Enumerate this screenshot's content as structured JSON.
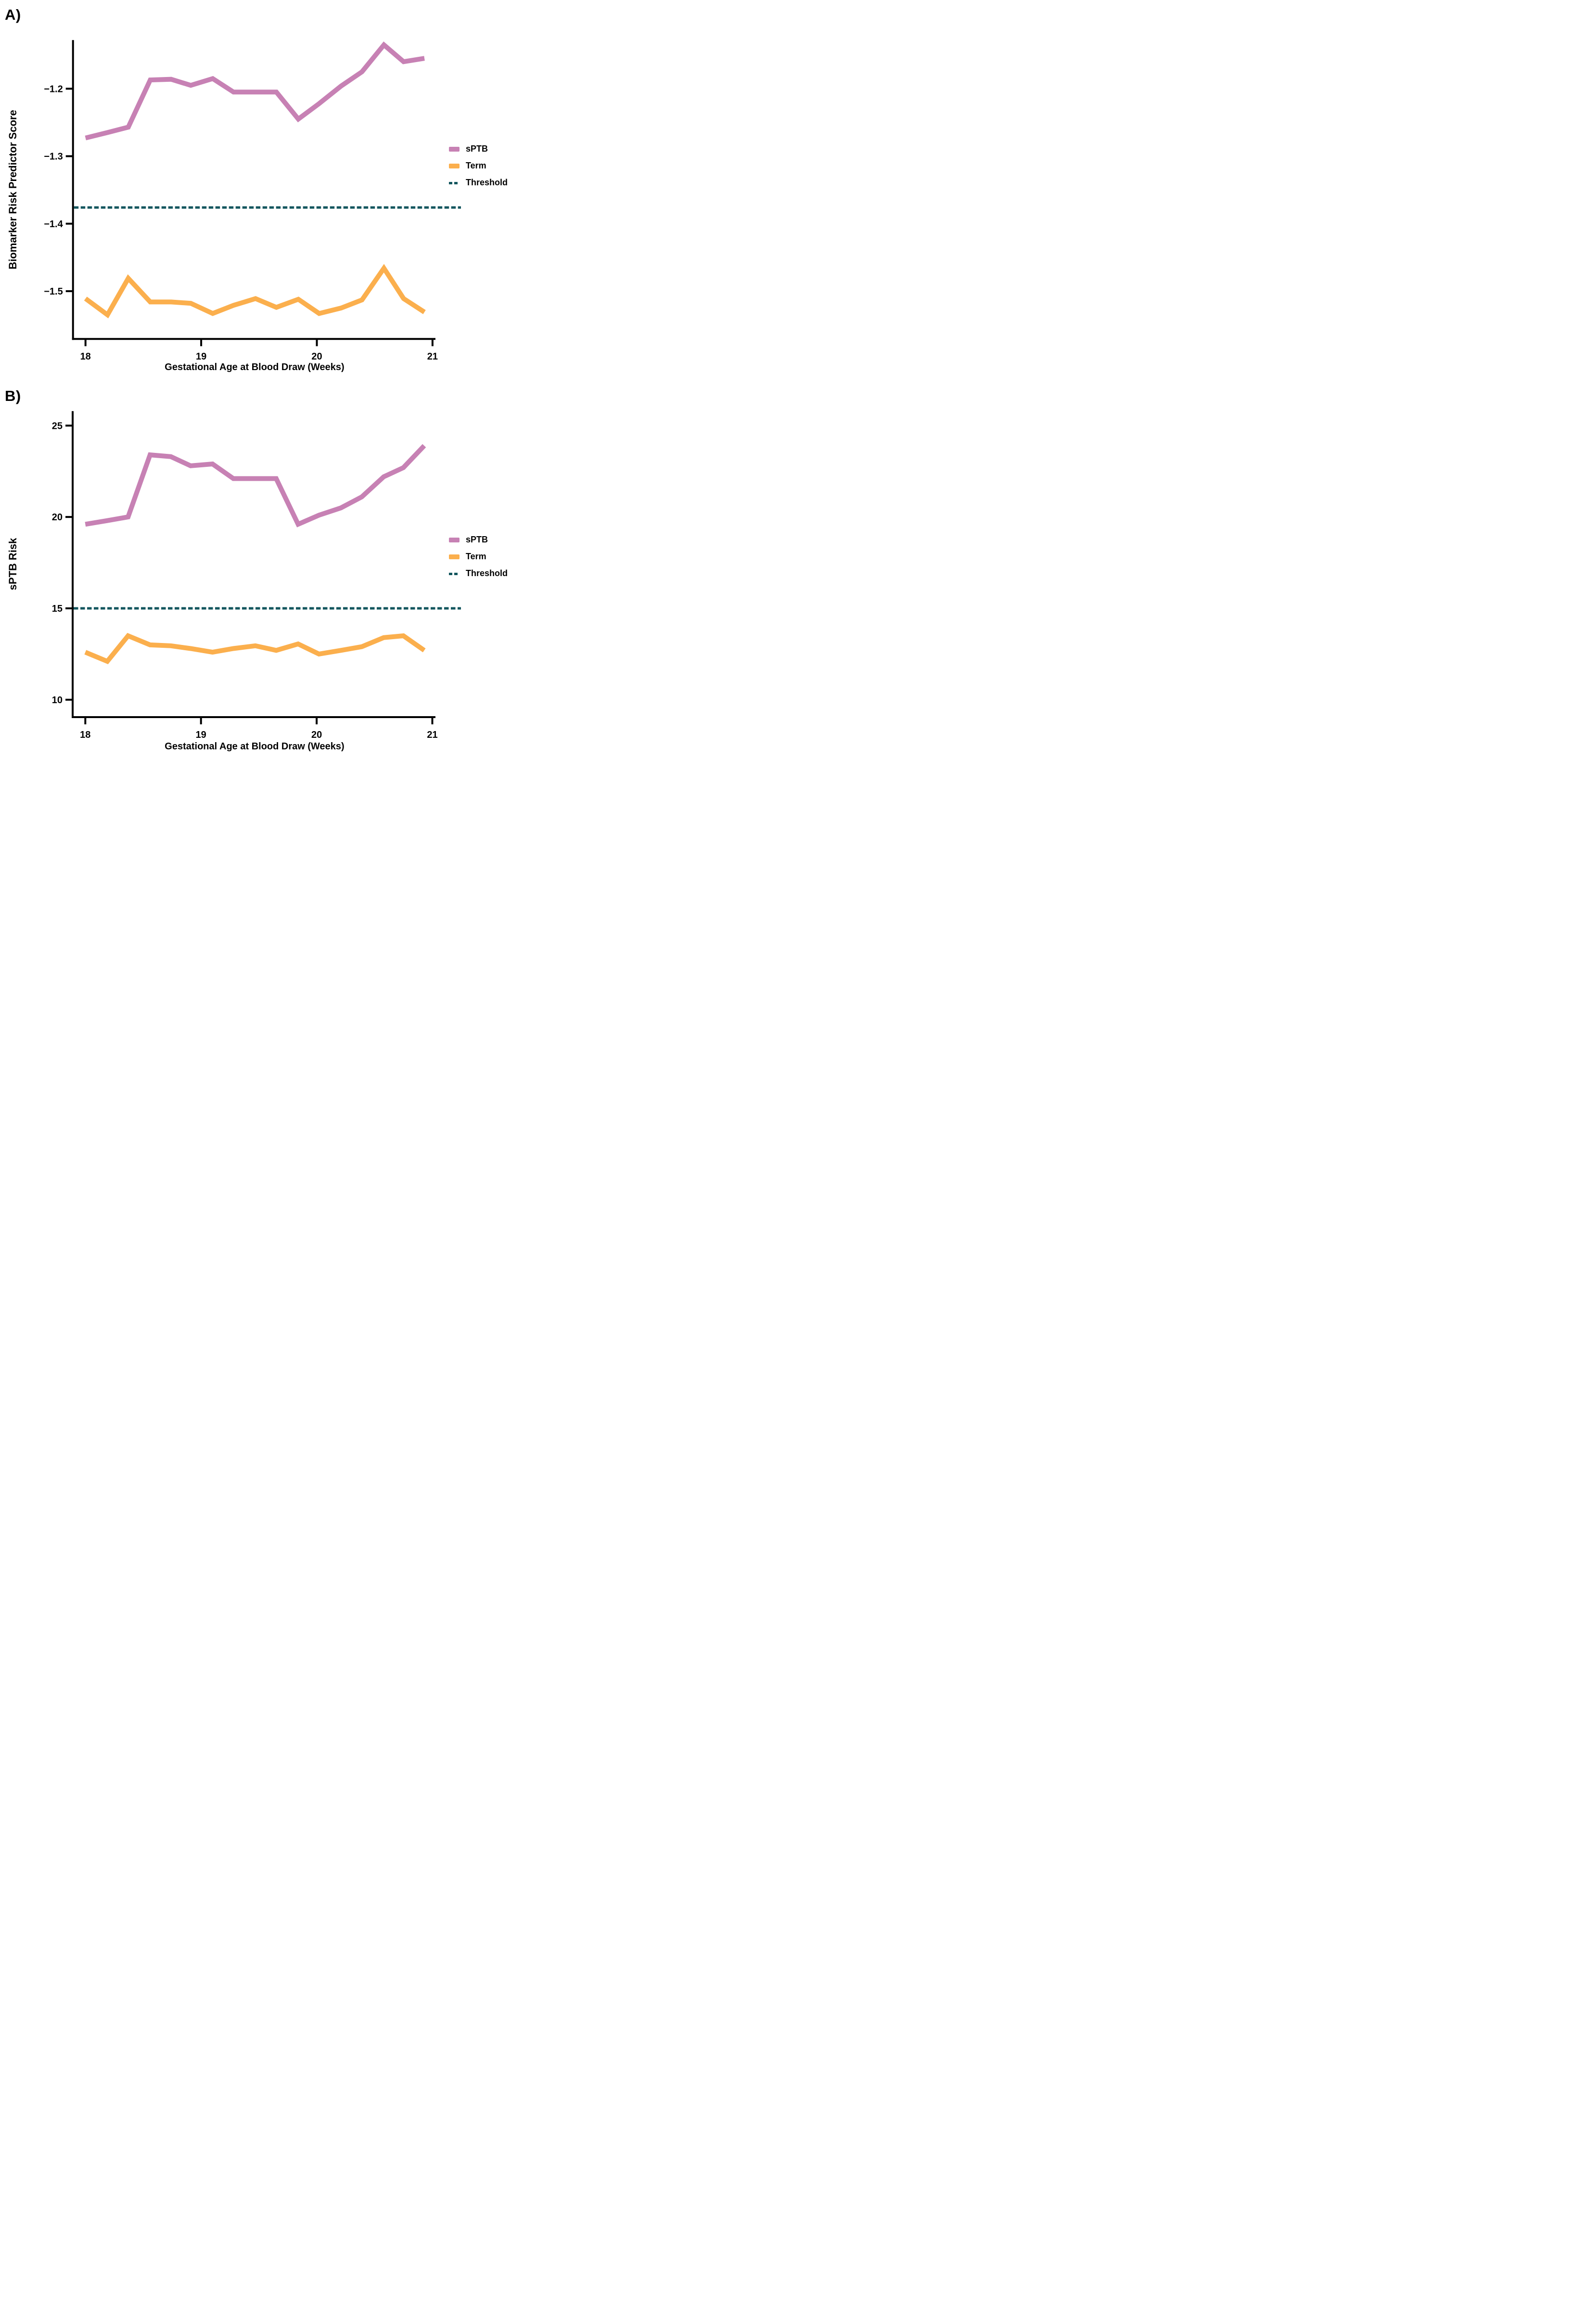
{
  "figure": {
    "background": "#ffffff",
    "panel_a_letter": "A)",
    "panel_b_letter": "B)"
  },
  "colors": {
    "sptb": "#c781b4",
    "term": "#fbaf4d",
    "threshold": "#13565e",
    "axis": "#000000",
    "text": "#000000"
  },
  "panels": [
    {
      "label": "A)",
      "y_axis_title": "Biomarker Risk Predictor Score",
      "x_axis_title": "Gestational Age at Blood Draw (Weeks)",
      "legend": [
        {
          "name": "sPTB",
          "color_key": "sptb",
          "style": "solid"
        },
        {
          "name": "Term",
          "color_key": "term",
          "style": "solid"
        },
        {
          "name": "Threshold",
          "color_key": "threshold",
          "style": "dashed"
        }
      ]
    },
    {
      "label": "B)",
      "y_axis_title": "sPTB Risk",
      "x_axis_title": "Gestational Age at Blood Draw (Weeks)",
      "legend": [
        {
          "name": "sPTB",
          "color_key": "sptb",
          "style": "solid"
        },
        {
          "name": "Term",
          "color_key": "term",
          "style": "solid"
        },
        {
          "name": "Threshold",
          "color_key": "threshold",
          "style": "dashed"
        }
      ]
    }
  ],
  "chart_data": [
    {
      "type": "line",
      "panel": "A",
      "xlabel": "Gestational Age at Blood Draw (Weeks)",
      "ylabel": "Biomarker Risk Predictor Score",
      "legend_position": "right",
      "grid": false,
      "x": [
        18.0,
        18.19,
        18.37,
        18.56,
        18.74,
        18.91,
        19.1,
        19.28,
        19.47,
        19.65,
        19.84,
        20.02,
        20.21,
        20.39,
        20.58,
        20.75,
        20.93
      ],
      "series": [
        {
          "name": "sPTB",
          "color_key": "sptb",
          "values": [
            -1.273,
            -1.265,
            -1.257,
            -1.187,
            -1.186,
            -1.195,
            -1.185,
            -1.205,
            -1.205,
            -1.205,
            -1.245,
            -1.222,
            -1.196,
            -1.175,
            -1.135,
            -1.16,
            -1.155
          ]
        },
        {
          "name": "Term",
          "color_key": "term",
          "values": [
            -1.511,
            -1.535,
            -1.481,
            -1.516,
            -1.516,
            -1.518,
            -1.533,
            -1.521,
            -1.511,
            -1.524,
            -1.512,
            -1.533,
            -1.525,
            -1.513,
            -1.466,
            -1.511,
            -1.531
          ]
        }
      ],
      "threshold_value": -1.376,
      "xlim": [
        17.89,
        21.03
      ],
      "ylim": [
        -1.575,
        -1.11
      ],
      "xticks": [
        18,
        19,
        20,
        21
      ],
      "xtick_labels": [
        "18",
        "19",
        "20",
        "21"
      ],
      "yticks": [
        -1.2,
        -1.3,
        -1.4,
        -1.5
      ],
      "ytick_labels": [
        "−1.2",
        "−1.3",
        "−1.4",
        "−1.5"
      ]
    },
    {
      "type": "line",
      "panel": "B",
      "xlabel": "Gestational Age at Blood Draw (Weeks)",
      "ylabel": "sPTB Risk",
      "legend_position": "right",
      "grid": false,
      "x": [
        18.0,
        18.19,
        18.37,
        18.56,
        18.74,
        18.91,
        19.1,
        19.28,
        19.47,
        19.65,
        19.84,
        20.02,
        20.21,
        20.39,
        20.58,
        20.75,
        20.93
      ],
      "series": [
        {
          "name": "sPTB",
          "color_key": "sptb",
          "values": [
            19.6,
            19.8,
            20.0,
            23.4,
            23.3,
            22.8,
            22.9,
            22.1,
            22.1,
            22.1,
            19.6,
            20.1,
            20.5,
            21.1,
            22.2,
            22.7,
            23.9
          ]
        },
        {
          "name": "Term",
          "color_key": "term",
          "values": [
            12.6,
            12.1,
            13.5,
            13.0,
            12.95,
            12.8,
            12.6,
            12.8,
            12.95,
            12.7,
            13.05,
            12.5,
            12.7,
            12.9,
            13.4,
            13.5,
            12.7
          ]
        }
      ],
      "threshold_value": 15,
      "xlim": [
        17.89,
        21.03
      ],
      "ylim": [
        9.0,
        25.8
      ],
      "xticks": [
        18,
        19,
        20,
        21
      ],
      "xtick_labels": [
        "18",
        "19",
        "20",
        "21"
      ],
      "yticks": [
        25,
        20,
        15,
        10
      ],
      "ytick_labels": [
        "25",
        "20",
        "15",
        "10"
      ]
    }
  ]
}
